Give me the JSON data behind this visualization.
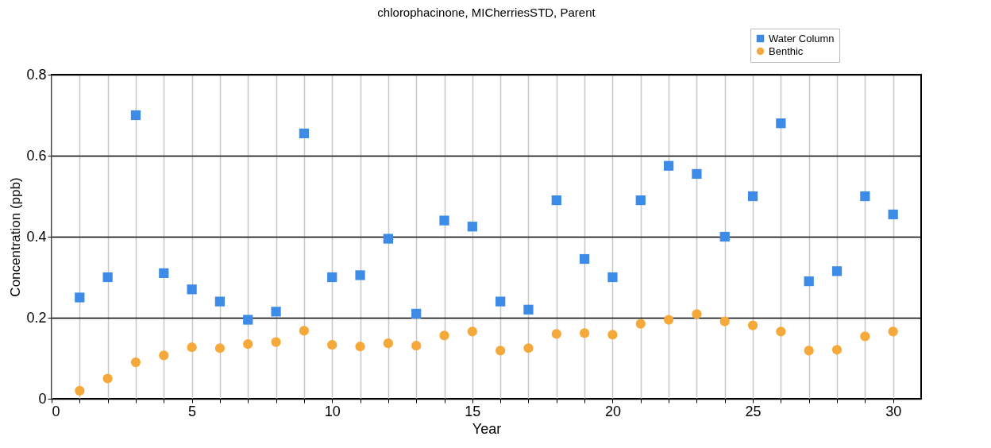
{
  "chart_data": {
    "type": "scatter",
    "title": "chlorophacinone, MICherriesSTD,  Parent",
    "xlabel": "Year",
    "ylabel": "Concentration (ppb)",
    "x": [
      1,
      2,
      3,
      4,
      5,
      6,
      7,
      8,
      9,
      10,
      11,
      12,
      13,
      14,
      15,
      16,
      17,
      18,
      19,
      20,
      21,
      22,
      23,
      24,
      25,
      26,
      27,
      28,
      29,
      30
    ],
    "series": [
      {
        "name": "Water Column",
        "color": "#3c8ce7",
        "marker": "square",
        "values": [
          0.25,
          0.3,
          0.7,
          0.31,
          0.27,
          0.24,
          0.195,
          0.215,
          0.655,
          0.3,
          0.305,
          0.395,
          0.21,
          0.44,
          0.425,
          0.24,
          0.22,
          0.49,
          0.345,
          0.3,
          0.49,
          0.575,
          0.555,
          0.4,
          0.5,
          0.68,
          0.29,
          0.315,
          0.5,
          0.455
        ]
      },
      {
        "name": "Benthic",
        "color": "#f5a93a",
        "marker": "circle",
        "values": [
          0.02,
          0.05,
          0.09,
          0.107,
          0.127,
          0.125,
          0.135,
          0.14,
          0.168,
          0.133,
          0.129,
          0.137,
          0.131,
          0.156,
          0.166,
          0.119,
          0.125,
          0.16,
          0.162,
          0.158,
          0.185,
          0.195,
          0.209,
          0.191,
          0.181,
          0.166,
          0.119,
          0.121,
          0.154,
          0.166
        ]
      }
    ],
    "xlim": [
      0,
      31
    ],
    "xticks": [
      0,
      {
        "value": 1,
        "label": null
      },
      {
        "value": 2,
        "label": null
      },
      {
        "value": 3,
        "label": null
      },
      {
        "value": 4,
        "label": null
      },
      5,
      {
        "value": 6,
        "label": null
      },
      {
        "value": 7,
        "label": null
      },
      {
        "value": 8,
        "label": null
      },
      {
        "value": 9,
        "label": null
      },
      10,
      {
        "value": 11,
        "label": null
      },
      {
        "value": 12,
        "label": null
      },
      {
        "value": 13,
        "label": null
      },
      {
        "value": 14,
        "label": null
      },
      15,
      {
        "value": 16,
        "label": null
      },
      {
        "value": 17,
        "label": null
      },
      {
        "value": 18,
        "label": null
      },
      {
        "value": 19,
        "label": null
      },
      20,
      {
        "value": 21,
        "label": null
      },
      {
        "value": 22,
        "label": null
      },
      {
        "value": 23,
        "label": null
      },
      {
        "value": 24,
        "label": null
      },
      25,
      {
        "value": 26,
        "label": null
      },
      {
        "value": 27,
        "label": null
      },
      {
        "value": 28,
        "label": null
      },
      {
        "value": 29,
        "label": null
      },
      30
    ],
    "ylim": [
      0,
      0.8
    ],
    "yticks": [
      0,
      0.2,
      0.4,
      0.6,
      0.8
    ],
    "grid": true,
    "legend": "top right"
  }
}
